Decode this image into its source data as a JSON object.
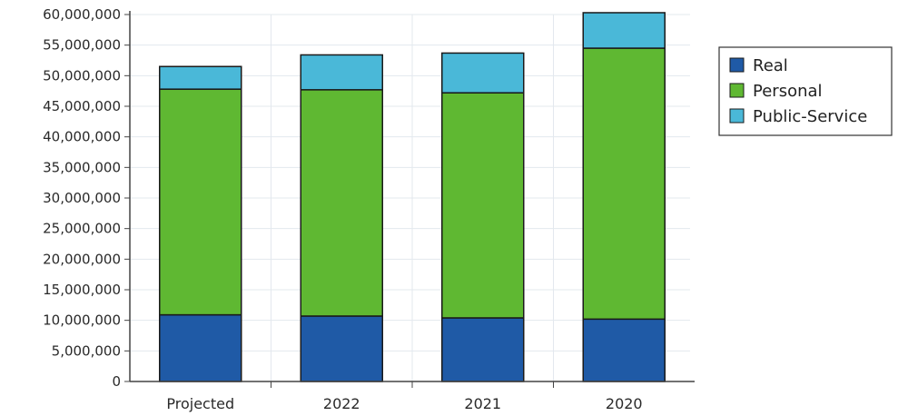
{
  "chart_data": {
    "type": "bar",
    "stacked": true,
    "categories": [
      "Projected",
      "2022",
      "2021",
      "2020"
    ],
    "series": [
      {
        "name": "Real",
        "color": "#1f5aa6",
        "values": [
          10900000,
          10700000,
          10400000,
          10200000
        ]
      },
      {
        "name": "Personal",
        "color": "#5fb832",
        "values": [
          36900000,
          37000000,
          36800000,
          44300000
        ]
      },
      {
        "name": "Public-Service",
        "color": "#4ab8d8",
        "values": [
          3700000,
          5700000,
          6500000,
          5800000
        ]
      }
    ],
    "ylim": [
      0,
      60000000
    ],
    "yticks": [
      0,
      5000000,
      10000000,
      15000000,
      20000000,
      25000000,
      30000000,
      35000000,
      40000000,
      45000000,
      50000000,
      55000000,
      60000000
    ],
    "ytick_labels": [
      "0",
      "5,000,000",
      "10,000,000",
      "15,000,000",
      "20,000,000",
      "25,000,000",
      "30,000,000",
      "35,000,000",
      "40,000,000",
      "45,000,000",
      "50,000,000",
      "55,000,000",
      "60,000,000"
    ],
    "title": "",
    "xlabel": "",
    "ylabel": "",
    "grid": true,
    "legend_position": "right"
  }
}
